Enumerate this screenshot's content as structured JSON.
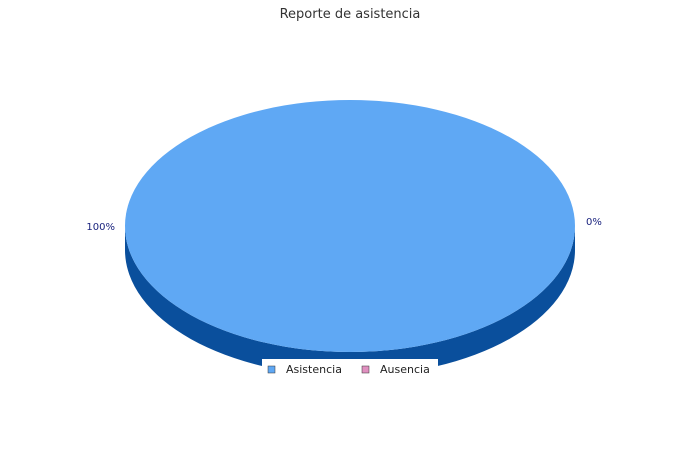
{
  "chart_data": {
    "type": "pie",
    "style": "3d",
    "title": "Reporte de asistencia",
    "categories": [
      "Asistencia",
      "Ausencia"
    ],
    "values": [
      100,
      0
    ],
    "labels": [
      "100%",
      "0%"
    ],
    "colors": [
      "#5fa8f4",
      "#e090c0"
    ],
    "side_colors": [
      "#0a4f9c",
      "#8a3f6e"
    ],
    "legend_position": "bottom"
  }
}
